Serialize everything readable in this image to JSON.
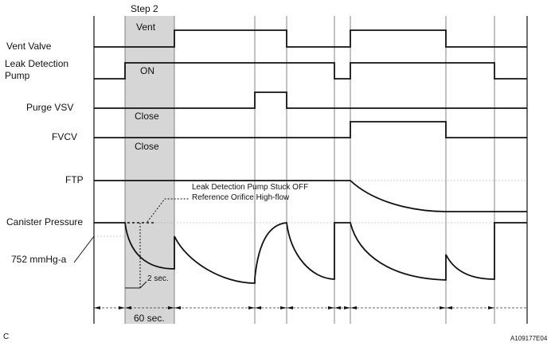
{
  "step_label": "Step 2",
  "signals": {
    "vent_valve": "Vent Valve",
    "leak_pump_1": "Leak Detection",
    "leak_pump_2": "Pump",
    "purge_vsv": "Purge VSV",
    "fvcv": "FVCV",
    "ftp": "FTP",
    "canister": "Canister Pressure"
  },
  "state_labels": {
    "vent": "Vent",
    "on": "ON",
    "close_purge": "Close",
    "close_fvcv": "Close"
  },
  "annotation": {
    "line1": "Leak Detection Pump Stuck OFF",
    "line2": "Reference Orifice High-flow"
  },
  "pressure_ref": "752 mmHg-a",
  "time_2s": "2 sec.",
  "time_60s": "60 sec.",
  "corner_label": "C",
  "figure_id": "A109177E04",
  "colors": {
    "shade": "#d6d6d6",
    "line": "#111111"
  }
}
